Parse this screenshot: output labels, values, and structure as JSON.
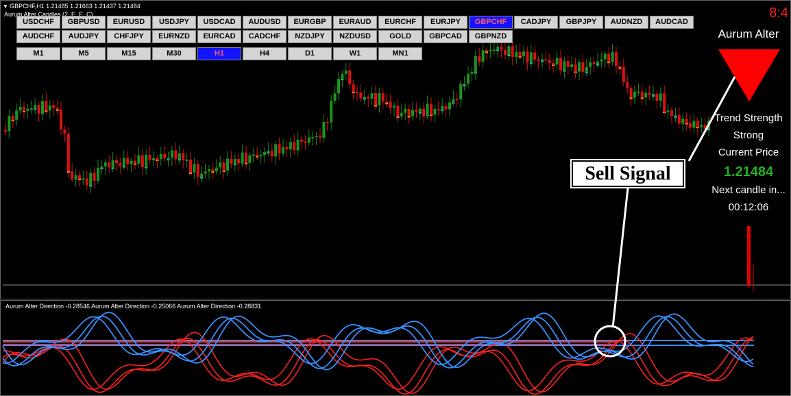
{
  "header": {
    "symbol_line": "GBPCHF,H1  1.21485 1.21663 1.21437 1.21484",
    "indicator": "Aurum Alter Candles (2, E, E, C)"
  },
  "symbol_buttons": [
    [
      {
        "label": "USDCHF"
      },
      {
        "label": "GBPUSD"
      },
      {
        "label": "EURUSD"
      },
      {
        "label": "USDJPY"
      },
      {
        "label": "USDCAD"
      },
      {
        "label": "AUDUSD"
      },
      {
        "label": "EURGBP"
      },
      {
        "label": "EURAUD"
      },
      {
        "label": "EURCHF"
      },
      {
        "label": "EURJPY"
      },
      {
        "label": "GBPCHF",
        "active": true
      },
      {
        "label": "CADJPY"
      },
      {
        "label": "GBPJPY"
      },
      {
        "label": "AUDNZD"
      },
      {
        "label": "AUDCAD"
      }
    ],
    [
      {
        "label": "AUDCHF"
      },
      {
        "label": "AUDJPY"
      },
      {
        "label": "CHFJPY"
      },
      {
        "label": "EURNZD"
      },
      {
        "label": "EURCAD"
      },
      {
        "label": "CADCHF"
      },
      {
        "label": "NZDJPY"
      },
      {
        "label": "NZDUSD"
      },
      {
        "label": "GOLD"
      },
      {
        "label": "GBPCAD"
      },
      {
        "label": "GBPNZD"
      }
    ]
  ],
  "timeframe_buttons": [
    {
      "label": "M1"
    },
    {
      "label": "M5"
    },
    {
      "label": "M15"
    },
    {
      "label": "M30"
    },
    {
      "label": "H1",
      "active": true
    },
    {
      "label": "H4"
    },
    {
      "label": "D1"
    },
    {
      "label": "W1"
    },
    {
      "label": "MN1"
    }
  ],
  "panel": {
    "score": "8:4",
    "name": "Aurum Alter",
    "trend_label": "Trend Strength",
    "trend_value": "Strong",
    "price_label": "Current Price",
    "price": "1.21484",
    "next_label": "Next candle in...",
    "countdown": "00:12:06"
  },
  "annotation": "Sell Signal",
  "subwindow": {
    "label": "Aurum Alter Direction -0.28546   Aurum Alter Direction -0.25066   Aurum Alter Direction -0.28831"
  }
}
